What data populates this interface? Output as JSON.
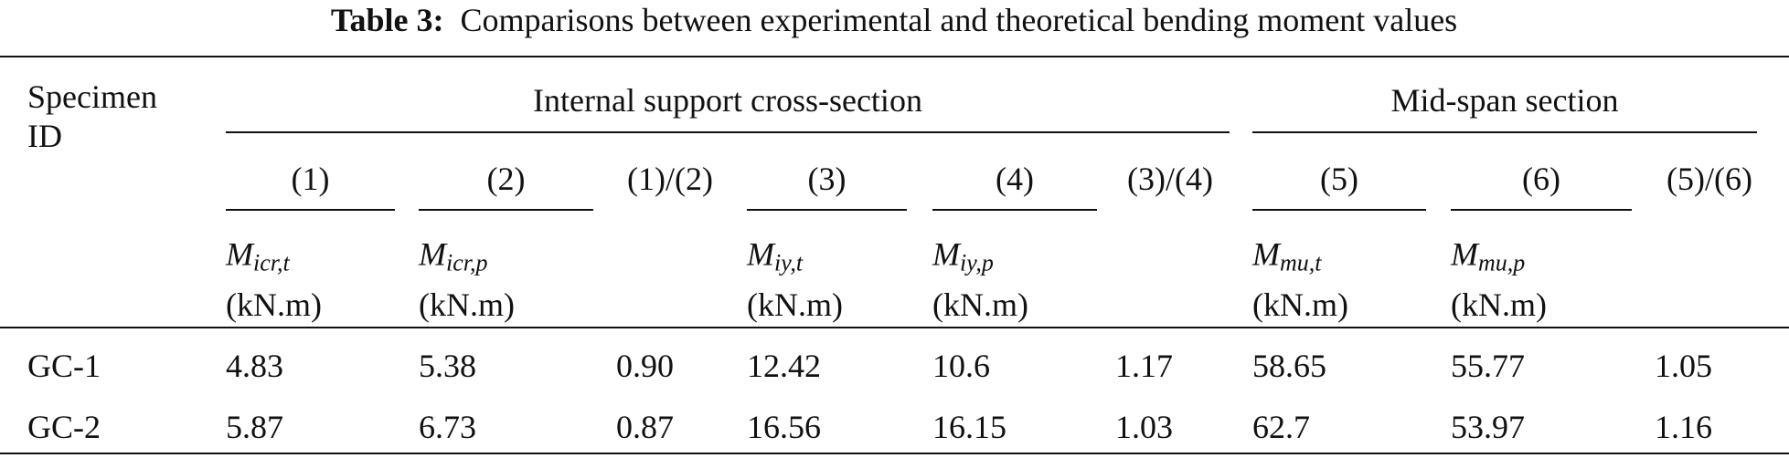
{
  "title": {
    "label": "Table 3:",
    "text": "Comparisons between experimental and theoretical bending moment values"
  },
  "table": {
    "first_header": "Specimen ID",
    "groups": [
      "Internal support cross-section",
      "Mid-span section"
    ],
    "column_numbers": [
      "(1)",
      "(2)",
      "(1)/(2)",
      "(3)",
      "(4)",
      "(3)/(4)",
      "(5)",
      "(6)",
      "(5)/(6)"
    ],
    "quantities": [
      {
        "symbol": "M",
        "subscript": "icr,t",
        "unit": "(kN.m)"
      },
      {
        "symbol": "M",
        "subscript": "icr,p",
        "unit": "(kN.m)"
      },
      null,
      {
        "symbol": "M",
        "subscript": "iy,t",
        "unit": "(kN.m)"
      },
      {
        "symbol": "M",
        "subscript": "iy,p",
        "unit": "(kN.m)"
      },
      null,
      {
        "symbol": "M",
        "subscript": "mu,t",
        "unit": "(kN.m)"
      },
      {
        "symbol": "M",
        "subscript": "mu,p",
        "unit": "(kN.m)"
      },
      null
    ],
    "rows": [
      [
        "GC-1",
        "4.83",
        "5.38",
        "0.90",
        "12.42",
        "10.6",
        "1.17",
        "58.65",
        "55.77",
        "1.05"
      ],
      [
        "GC-2",
        "5.87",
        "6.73",
        "0.87",
        "16.56",
        "16.15",
        "1.03",
        "62.7",
        "53.97",
        "1.16"
      ]
    ]
  }
}
